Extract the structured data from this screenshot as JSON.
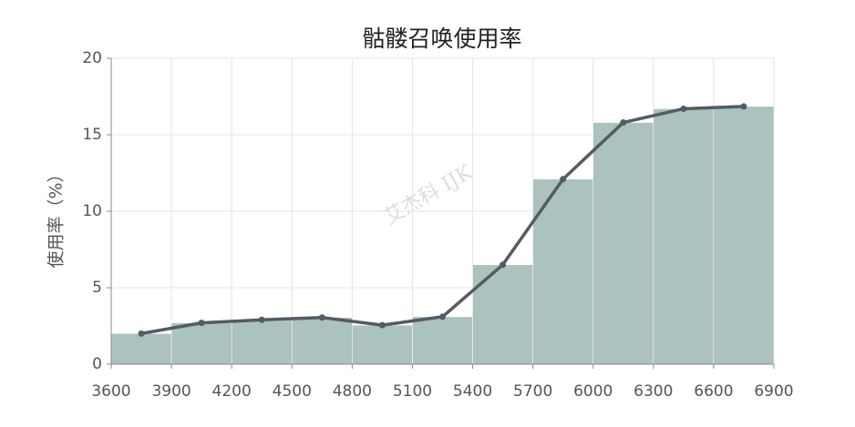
{
  "chart_data": {
    "type": "histogram",
    "title": "骷髅召唤使用率",
    "y_label": "使用率（%）",
    "watermark": "艾杰科 IJK",
    "bins": [
      3600,
      3900,
      4200,
      4500,
      4800,
      5100,
      5400,
      5700,
      6000,
      6300,
      6600,
      6900
    ],
    "values": [
      2.0,
      2.7,
      2.9,
      3.05,
      2.55,
      3.1,
      6.5,
      12.1,
      15.8,
      16.7,
      16.85
    ],
    "color": "#abc2be",
    "line_color": "#545b63",
    "xlim": [
      3600,
      6900
    ],
    "xticks": [
      3600,
      3900,
      4200,
      4500,
      4800,
      5100,
      5400,
      5700,
      6000,
      6300,
      6600,
      6900
    ],
    "ylim": [
      0,
      20
    ],
    "yticks": [
      0,
      5,
      10,
      15,
      20
    ],
    "grid": true
  }
}
